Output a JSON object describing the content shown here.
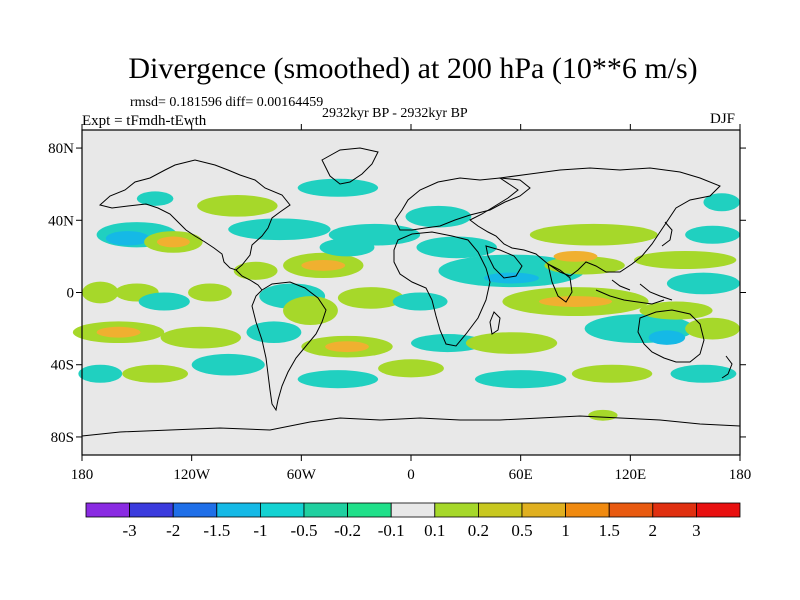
{
  "map": {
    "title": "Divergence (smoothed) at 200 hPa (10**6 m/s)",
    "stats": "rmsd= 0.181596  diff= 0.00164459",
    "experiment": "Expt = tFmdh-tEwth",
    "period": "2932kyr BP - 2932kyr BP",
    "season": "DJF",
    "projection": "cylindrical equidistant",
    "lon_range": [
      -180,
      180
    ],
    "lat_range": [
      -90,
      90
    ],
    "lat_ticks": [
      {
        "value": 80,
        "label": "80N"
      },
      {
        "value": 40,
        "label": "40N"
      },
      {
        "value": 0,
        "label": "0"
      },
      {
        "value": -40,
        "label": "40S"
      },
      {
        "value": -80,
        "label": "80S"
      }
    ],
    "lon_ticks": [
      {
        "value": -180,
        "label": "180"
      },
      {
        "value": -120,
        "label": "120W"
      },
      {
        "value": -60,
        "label": "60W"
      },
      {
        "value": 0,
        "label": "0"
      },
      {
        "value": 60,
        "label": "60E"
      },
      {
        "value": 120,
        "label": "120E"
      },
      {
        "value": 180,
        "label": "180"
      }
    ],
    "background_color": "#e8e8e8",
    "blobs": [
      {
        "lon": -150,
        "lat": 32,
        "rlon": 22,
        "rlat": 7,
        "color": "#20d0c0"
      },
      {
        "lon": -155,
        "lat": 30,
        "rlon": 12,
        "rlat": 4,
        "color": "#15b9e6"
      },
      {
        "lon": -140,
        "lat": 52,
        "rlon": 10,
        "rlat": 4,
        "color": "#20d0c0"
      },
      {
        "lon": -130,
        "lat": 28,
        "rlon": 16,
        "rlat": 6,
        "color": "#a6d82a"
      },
      {
        "lon": -130,
        "lat": 28,
        "rlon": 9,
        "rlat": 3,
        "color": "#f0b030"
      },
      {
        "lon": -95,
        "lat": 48,
        "rlon": 22,
        "rlat": 6,
        "color": "#a6d82a"
      },
      {
        "lon": -72,
        "lat": 35,
        "rlon": 28,
        "rlat": 6,
        "color": "#20d0c0"
      },
      {
        "lon": -40,
        "lat": 58,
        "rlon": 22,
        "rlat": 5,
        "color": "#20d0c0"
      },
      {
        "lon": -20,
        "lat": 32,
        "rlon": 25,
        "rlat": 6,
        "color": "#20d0c0"
      },
      {
        "lon": -48,
        "lat": 15,
        "rlon": 22,
        "rlat": 7,
        "color": "#a6d82a"
      },
      {
        "lon": -48,
        "lat": 15,
        "rlon": 12,
        "rlat": 3,
        "color": "#f0b030"
      },
      {
        "lon": -35,
        "lat": 25,
        "rlon": 15,
        "rlat": 5,
        "color": "#20d0c0"
      },
      {
        "lon": -85,
        "lat": 12,
        "rlon": 12,
        "rlat": 5,
        "color": "#a6d82a"
      },
      {
        "lon": -170,
        "lat": 0,
        "rlon": 10,
        "rlat": 6,
        "color": "#a6d82a"
      },
      {
        "lon": -150,
        "lat": 0,
        "rlon": 12,
        "rlat": 5,
        "color": "#a6d82a"
      },
      {
        "lon": -135,
        "lat": -5,
        "rlon": 14,
        "rlat": 5,
        "color": "#20d0c0"
      },
      {
        "lon": -110,
        "lat": 0,
        "rlon": 12,
        "rlat": 5,
        "color": "#a6d82a"
      },
      {
        "lon": -65,
        "lat": -2,
        "rlon": 18,
        "rlat": 7,
        "color": "#20d0c0"
      },
      {
        "lon": -55,
        "lat": -10,
        "rlon": 15,
        "rlat": 8,
        "color": "#a6d82a"
      },
      {
        "lon": -22,
        "lat": -3,
        "rlon": 18,
        "rlat": 6,
        "color": "#a6d82a"
      },
      {
        "lon": 5,
        "lat": -5,
        "rlon": 15,
        "rlat": 5,
        "color": "#20d0c0"
      },
      {
        "lon": 15,
        "lat": 42,
        "rlon": 18,
        "rlat": 6,
        "color": "#20d0c0"
      },
      {
        "lon": 25,
        "lat": 25,
        "rlon": 22,
        "rlat": 6,
        "color": "#20d0c0"
      },
      {
        "lon": 55,
        "lat": 12,
        "rlon": 40,
        "rlat": 9,
        "color": "#20d0c0"
      },
      {
        "lon": 55,
        "lat": 8,
        "rlon": 15,
        "rlat": 3,
        "color": "#15b9e6"
      },
      {
        "lon": 100,
        "lat": 32,
        "rlon": 35,
        "rlat": 6,
        "color": "#a6d82a"
      },
      {
        "lon": 95,
        "lat": 15,
        "rlon": 22,
        "rlat": 5,
        "color": "#a6d82a"
      },
      {
        "lon": 90,
        "lat": 20,
        "rlon": 12,
        "rlat": 3,
        "color": "#f0b030"
      },
      {
        "lon": 150,
        "lat": 18,
        "rlon": 28,
        "rlat": 5,
        "color": "#a6d82a"
      },
      {
        "lon": 160,
        "lat": 5,
        "rlon": 20,
        "rlat": 6,
        "color": "#20d0c0"
      },
      {
        "lon": 165,
        "lat": 32,
        "rlon": 15,
        "rlat": 5,
        "color": "#20d0c0"
      },
      {
        "lon": 170,
        "lat": 50,
        "rlon": 10,
        "rlat": 5,
        "color": "#20d0c0"
      },
      {
        "lon": 90,
        "lat": -5,
        "rlon": 40,
        "rlat": 8,
        "color": "#a6d82a"
      },
      {
        "lon": 90,
        "lat": -5,
        "rlon": 20,
        "rlat": 3,
        "color": "#f0b030"
      },
      {
        "lon": 125,
        "lat": -20,
        "rlon": 30,
        "rlat": 8,
        "color": "#20d0c0"
      },
      {
        "lon": 140,
        "lat": -25,
        "rlon": 10,
        "rlat": 4,
        "color": "#15b9e6"
      },
      {
        "lon": 145,
        "lat": -10,
        "rlon": 20,
        "rlat": 5,
        "color": "#a6d82a"
      },
      {
        "lon": 165,
        "lat": -20,
        "rlon": 15,
        "rlat": 6,
        "color": "#a6d82a"
      },
      {
        "lon": -160,
        "lat": -22,
        "rlon": 25,
        "rlat": 6,
        "color": "#a6d82a"
      },
      {
        "lon": -160,
        "lat": -22,
        "rlon": 12,
        "rlat": 3,
        "color": "#f0b030"
      },
      {
        "lon": -115,
        "lat": -25,
        "rlon": 22,
        "rlat": 6,
        "color": "#a6d82a"
      },
      {
        "lon": -75,
        "lat": -22,
        "rlon": 15,
        "rlat": 6,
        "color": "#20d0c0"
      },
      {
        "lon": -35,
        "lat": -30,
        "rlon": 25,
        "rlat": 6,
        "color": "#a6d82a"
      },
      {
        "lon": -35,
        "lat": -30,
        "rlon": 12,
        "rlat": 3,
        "color": "#f0b030"
      },
      {
        "lon": 20,
        "lat": -28,
        "rlon": 20,
        "rlat": 5,
        "color": "#20d0c0"
      },
      {
        "lon": 55,
        "lat": -28,
        "rlon": 25,
        "rlat": 6,
        "color": "#a6d82a"
      },
      {
        "lon": -170,
        "lat": -45,
        "rlon": 12,
        "rlat": 5,
        "color": "#20d0c0"
      },
      {
        "lon": -140,
        "lat": -45,
        "rlon": 18,
        "rlat": 5,
        "color": "#a6d82a"
      },
      {
        "lon": -100,
        "lat": -40,
        "rlon": 20,
        "rlat": 6,
        "color": "#20d0c0"
      },
      {
        "lon": -40,
        "lat": -48,
        "rlon": 22,
        "rlat": 5,
        "color": "#20d0c0"
      },
      {
        "lon": 0,
        "lat": -42,
        "rlon": 18,
        "rlat": 5,
        "color": "#a6d82a"
      },
      {
        "lon": 60,
        "lat": -48,
        "rlon": 25,
        "rlat": 5,
        "color": "#20d0c0"
      },
      {
        "lon": 110,
        "lat": -45,
        "rlon": 22,
        "rlat": 5,
        "color": "#a6d82a"
      },
      {
        "lon": 160,
        "lat": -45,
        "rlon": 18,
        "rlat": 5,
        "color": "#20d0c0"
      },
      {
        "lon": 105,
        "lat": -68,
        "rlon": 8,
        "rlat": 3,
        "color": "#a6d82a"
      }
    ]
  },
  "colorbar": {
    "labels": [
      "-3",
      "-2",
      "-1.5",
      "-1",
      "-0.5",
      "-0.2",
      "-0.1",
      "0.1",
      "0.2",
      "0.5",
      "1",
      "1.5",
      "2",
      "3"
    ],
    "colors": [
      "#8a2be2",
      "#3b3bdd",
      "#1f6fe8",
      "#15b9e6",
      "#14d2d2",
      "#20d0a0",
      "#20e08a",
      "#e8e8e8",
      "#a6d82a",
      "#c8c820",
      "#e0b020",
      "#f08a10",
      "#e85a10",
      "#e03010",
      "#e81010"
    ]
  }
}
